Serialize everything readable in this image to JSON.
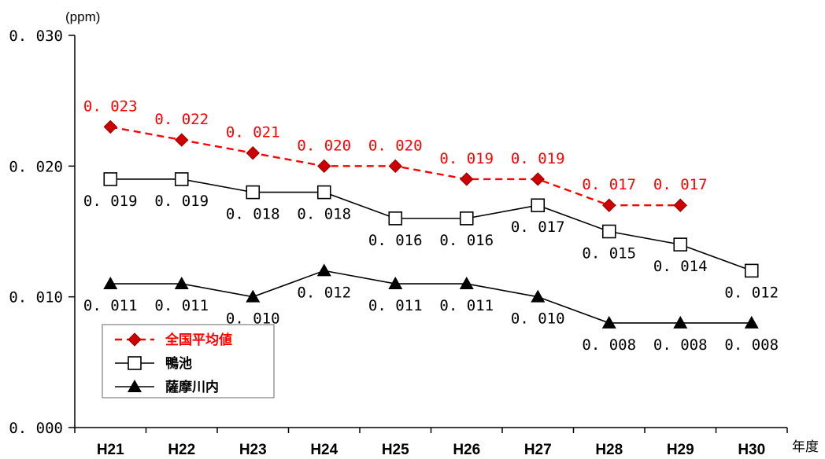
{
  "chart_data": {
    "type": "line",
    "categories": [
      "H21",
      "H22",
      "H23",
      "H24",
      "H25",
      "H26",
      "H27",
      "H28",
      "H29",
      "H30"
    ],
    "series": [
      {
        "name": "全国平均値",
        "values": [
          0.023,
          0.022,
          0.021,
          0.02,
          0.02,
          0.019,
          0.019,
          0.017,
          0.017,
          null
        ],
        "labels": [
          "0.023",
          "0.022",
          "0.021",
          "0.020",
          "0.020",
          "0.019",
          "0.019",
          "0.017",
          "0.017",
          null
        ],
        "color": "#ff0000",
        "marker": "diamond",
        "line": "dashed",
        "label_position": "above"
      },
      {
        "name": "鴨池",
        "values": [
          0.019,
          0.019,
          0.018,
          0.018,
          0.016,
          0.016,
          0.017,
          0.015,
          0.014,
          0.012
        ],
        "labels": [
          "0.019",
          "0.019",
          "0.018",
          "0.018",
          "0.016",
          "0.016",
          "0.017",
          "0.015",
          "0.014",
          "0.012"
        ],
        "color": "#000000",
        "marker": "square-open",
        "line": "solid",
        "label_position": "below"
      },
      {
        "name": "薩摩川内",
        "values": [
          0.011,
          0.011,
          0.01,
          0.012,
          0.011,
          0.011,
          0.01,
          0.008,
          0.008,
          0.008
        ],
        "labels": [
          "0.011",
          "0.011",
          "0.010",
          "0.012",
          "0.011",
          "0.011",
          "0.010",
          "0.008",
          "0.008",
          "0.008"
        ],
        "color": "#000000",
        "marker": "triangle",
        "line": "solid",
        "label_position": "below"
      }
    ],
    "y_ticks": [
      "0.000",
      "0.010",
      "0.020",
      "0.030"
    ],
    "ylim": [
      0,
      0.03
    ],
    "ylabel": "(ppm)",
    "xlabel": "年度",
    "grid": false,
    "legend": "bottom-left"
  }
}
